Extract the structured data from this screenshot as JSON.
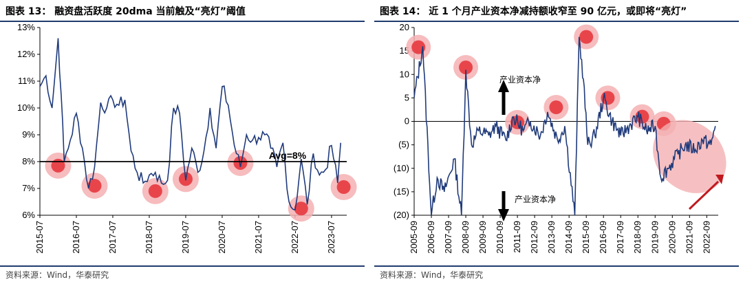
{
  "left": {
    "title": "图表 13：   融资盘活跃度 20dma 当前触及“亮灯”阈值",
    "source": "资料来源：Wind，华泰研究"
  },
  "right": {
    "title": "图表 14：   近 1 个月产业资本净减持额收窄至 90 亿元，或即将“亮灯”",
    "source": "资料来源：Wind，华泰研究"
  },
  "colors": {
    "series": "#1f3a7a",
    "highlight_fill": "#e8454b",
    "highlight_halo": "#f4b0b3",
    "arrow": "#c0191f",
    "rule": "#1f3b6e"
  },
  "chart_data": [
    {
      "type": "line",
      "series": [
        {
          "values_note": "",
          "x_start": "2015-07",
          "x_end": "2023-10"
        }
      ],
      "x_ticks": [
        "2015-07",
        "2016-07",
        "2017-07",
        "2018-07",
        "2019-07",
        "2020-07",
        "2021-07",
        "2022-07",
        "2023-07"
      ],
      "y_ticks": [
        "13%",
        "12%",
        "11%",
        "10%",
        "9%",
        "8%",
        "7%",
        "6%"
      ],
      "ylim": [
        6,
        13
      ],
      "y_unit": "%",
      "reference_line": {
        "value": 8,
        "label": "Avg=8%"
      },
      "x": [
        "2015-07",
        "2015-09",
        "2015-11",
        "2016-01",
        "2016-02",
        "2016-03",
        "2016-05",
        "2016-07",
        "2016-09",
        "2016-11",
        "2017-01",
        "2017-03",
        "2017-05",
        "2017-07",
        "2017-09",
        "2017-11",
        "2018-01",
        "2018-03",
        "2018-05",
        "2018-07",
        "2018-09",
        "2018-11",
        "2019-01",
        "2019-03",
        "2019-05",
        "2019-07",
        "2019-09",
        "2019-11",
        "2020-01",
        "2020-03",
        "2020-05",
        "2020-07",
        "2020-09",
        "2020-11",
        "2021-01",
        "2021-03",
        "2021-05",
        "2021-07",
        "2021-09",
        "2021-11",
        "2022-01",
        "2022-03",
        "2022-05",
        "2022-07",
        "2022-09",
        "2022-11",
        "2023-01",
        "2023-03",
        "2023-05",
        "2023-07",
        "2023-09",
        "2023-10"
      ],
      "values": [
        10.8,
        11.2,
        10.0,
        12.6,
        10.5,
        8.0,
        8.8,
        9.8,
        8.5,
        7.0,
        7.8,
        10.2,
        10.0,
        10.3,
        10.1,
        10.3,
        8.4,
        7.6,
        7.2,
        7.5,
        7.6,
        7.2,
        7.3,
        10.0,
        9.8,
        7.3,
        8.5,
        7.6,
        8.4,
        10.0,
        8.5,
        10.8,
        10.1,
        8.6,
        7.8,
        9.0,
        8.8,
        8.9,
        9.0,
        8.5,
        7.8,
        8.7,
        6.5,
        6.2,
        8.1,
        6.4,
        8.3,
        7.5,
        7.7,
        8.6,
        7.2,
        8.7
      ],
      "highlights": [
        {
          "x": "2016-01",
          "y": 7.85
        },
        {
          "x": "2017-01",
          "y": 7.1
        },
        {
          "x": "2018-09",
          "y": 6.9
        },
        {
          "x": "2019-07",
          "y": 7.35
        },
        {
          "x": "2021-01",
          "y": 7.95
        },
        {
          "x": "2022-09",
          "y": 6.25
        },
        {
          "x": "2023-11",
          "y": 7.05
        }
      ]
    },
    {
      "type": "line",
      "x_ticks": [
        "2005-09",
        "2006-09",
        "2007-09",
        "2008-09",
        "2009-09",
        "2010-09",
        "2011-09",
        "2012-09",
        "2013-09",
        "2014-09",
        "2015-09",
        "2016-09",
        "2017-09",
        "2018-09",
        "2019-09",
        "2020-09",
        "2021-09",
        "2022-09"
      ],
      "y_ticks": [
        "20",
        "15",
        "10",
        "5",
        "0",
        "(5)",
        "(10)",
        "(15)",
        "(20)"
      ],
      "ylim": [
        -20,
        20
      ],
      "annotations": {
        "up": "产业资本净",
        "down": "产业资本净"
      },
      "x": [
        "2005-09",
        "2006-03",
        "2006-09",
        "2007-01",
        "2007-06",
        "2008-01",
        "2008-06",
        "2008-09",
        "2009-01",
        "2009-06",
        "2010-01",
        "2010-06",
        "2011-01",
        "2011-06",
        "2012-01",
        "2012-06",
        "2013-01",
        "2013-06",
        "2014-01",
        "2014-06",
        "2015-01",
        "2015-04",
        "2015-07",
        "2015-10",
        "2016-03",
        "2016-09",
        "2017-03",
        "2017-09",
        "2018-03",
        "2018-09",
        "2019-03",
        "2019-09",
        "2020-01",
        "2020-06",
        "2021-01",
        "2021-06",
        "2022-01",
        "2022-06",
        "2022-12",
        "2023-03"
      ],
      "values": [
        5,
        16,
        -20,
        -12,
        -15,
        -8,
        -20,
        11,
        -5,
        -2,
        -3,
        -1,
        -4,
        1,
        -2,
        0,
        -3,
        2,
        -4,
        -1,
        -20,
        18,
        9,
        -5,
        -3,
        5,
        0,
        -3,
        -1,
        1,
        -2,
        -1,
        -12,
        -10,
        -7,
        -5,
        -6,
        -4,
        -5,
        -1
      ],
      "highlights": [
        {
          "x": "2005-12",
          "y": 15.8
        },
        {
          "x": "2008-09",
          "y": 11.5
        },
        {
          "x": "2011-09",
          "y": -0.2
        },
        {
          "x": "2013-12",
          "y": 3
        },
        {
          "x": "2015-09",
          "y": 18
        },
        {
          "x": "2016-12",
          "y": 5
        },
        {
          "x": "2018-12",
          "y": 1
        },
        {
          "x": "2020-03",
          "y": -0.5
        }
      ]
    }
  ]
}
